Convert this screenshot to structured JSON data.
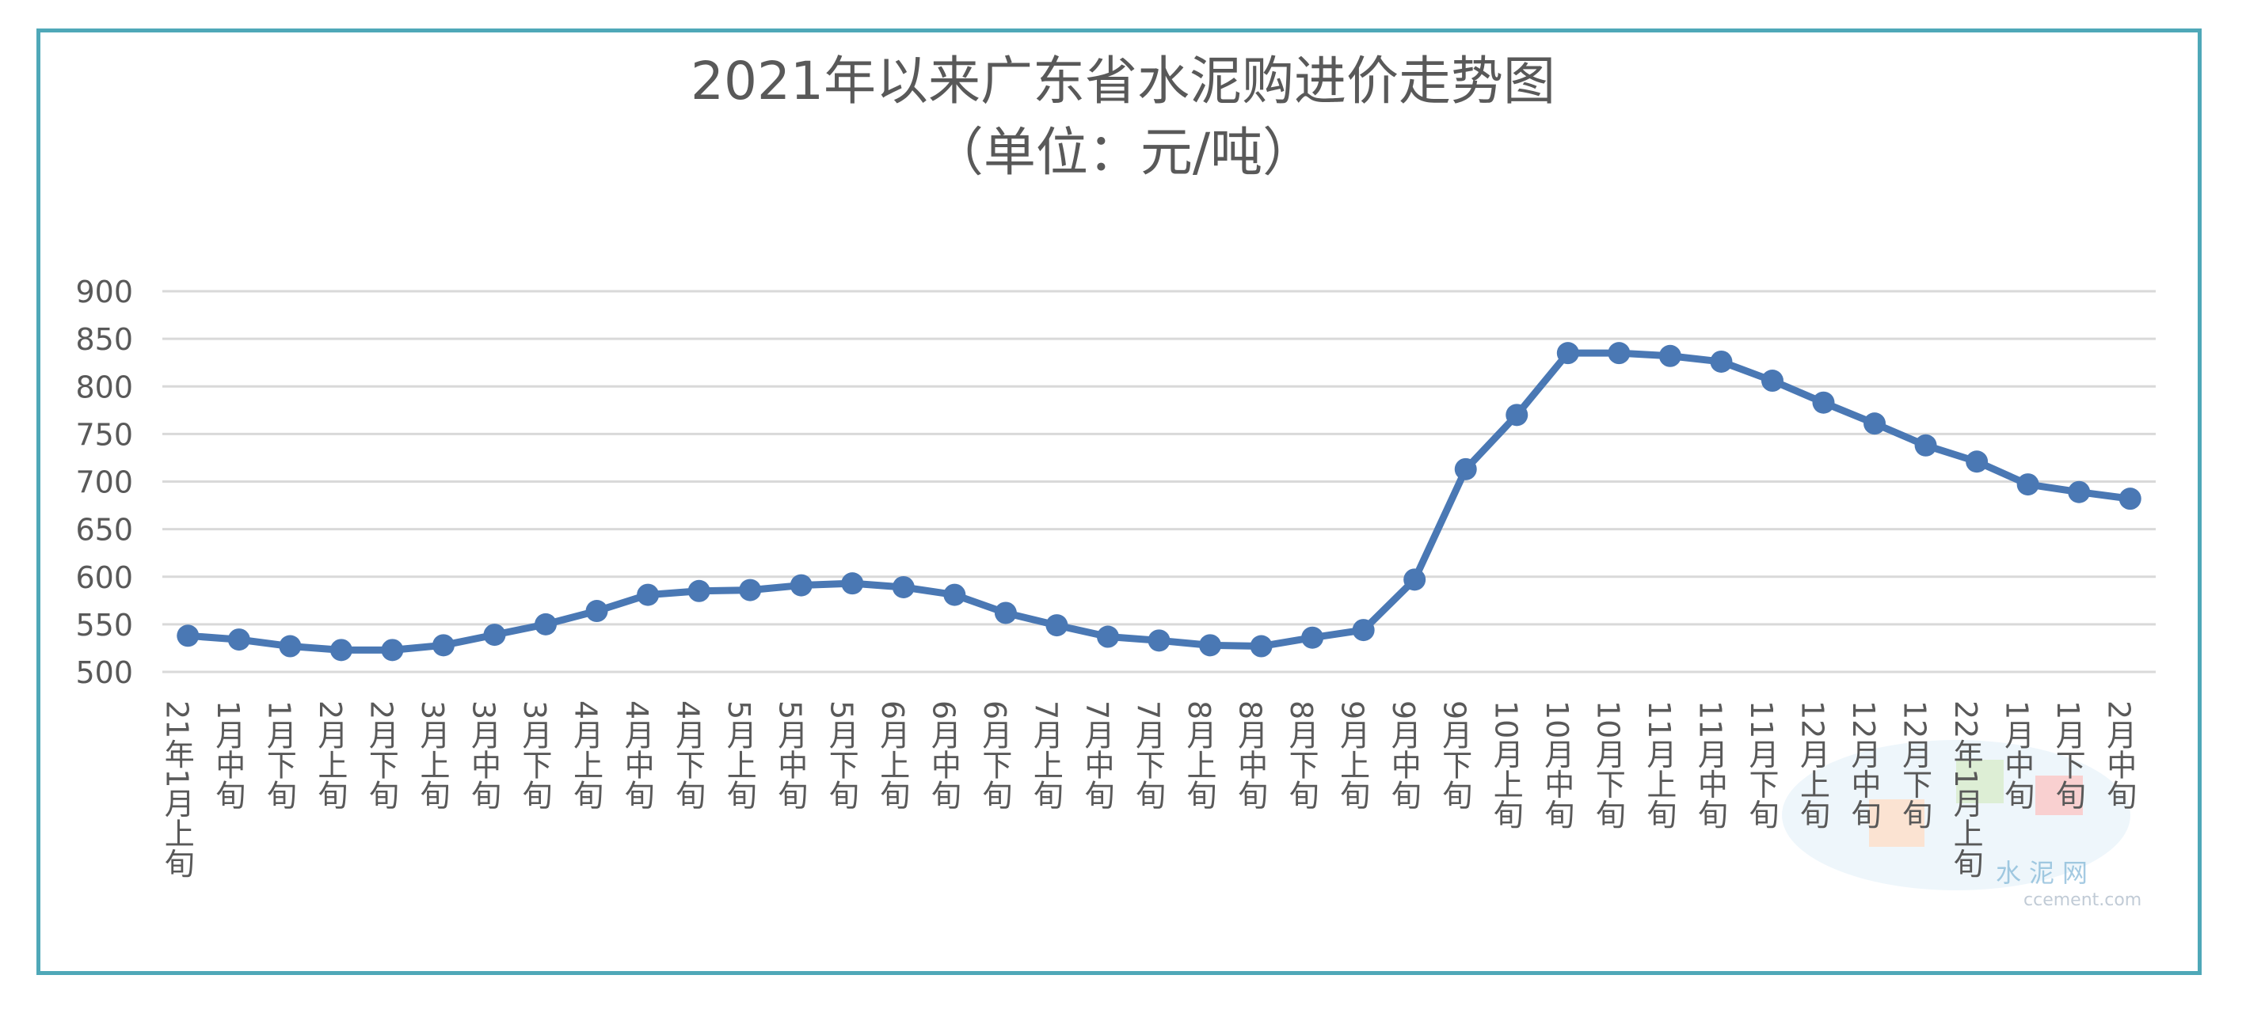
{
  "chart_data": {
    "type": "line",
    "title": "2021年以来广东省水泥购进价走势图",
    "subtitle": "（单位：元/吨）",
    "ylim": [
      500,
      900
    ],
    "yticks": [
      500,
      550,
      600,
      650,
      700,
      750,
      800,
      850,
      900
    ],
    "grid": true,
    "color": "#4a78b4",
    "categories": [
      "21年1月上旬",
      "1月中旬",
      "1月下旬",
      "2月上旬",
      "2月下旬",
      "3月上旬",
      "3月中旬",
      "3月下旬",
      "4月上旬",
      "4月中旬",
      "4月下旬",
      "5月上旬",
      "5月中旬",
      "5月下旬",
      "6月上旬",
      "6月中旬",
      "6月下旬",
      "7月上旬",
      "7月中旬",
      "7月下旬",
      "8月上旬",
      "8月中旬",
      "8月下旬",
      "9月上旬",
      "9月中旬",
      "9月下旬",
      "10月上旬",
      "10月中旬",
      "10月下旬",
      "11月上旬",
      "11月中旬",
      "11月下旬",
      "12月上旬",
      "12月中旬",
      "12月下旬",
      "22年1月上旬",
      "1月中旬",
      "1月下旬",
      "2月中旬"
    ],
    "values": [
      538,
      534,
      527,
      523,
      523,
      528,
      539,
      550,
      564,
      581,
      585,
      586,
      591,
      593,
      589,
      581,
      562,
      549,
      537,
      533,
      528,
      527,
      536,
      544,
      597,
      713,
      770,
      835,
      835,
      832,
      826,
      806,
      783,
      761,
      738,
      721,
      697,
      689,
      682
    ]
  },
  "watermark": {
    "text": "水泥网",
    "url": "ccement.com"
  }
}
